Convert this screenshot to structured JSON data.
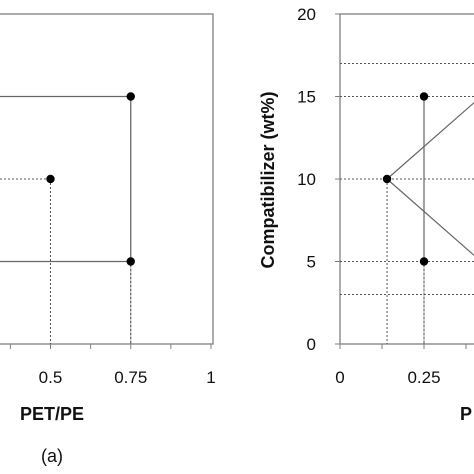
{
  "chart_data": [
    {
      "type": "scatter",
      "panel_label": "(a)",
      "xlabel": "PET/PE",
      "ylabel": "",
      "x_ticks": [
        "0.5",
        "0.75",
        "1"
      ],
      "xlim": [
        0,
        1
      ],
      "ylim": [
        0,
        20
      ],
      "grid": false,
      "points": [
        {
          "x": 0.75,
          "y": 15
        },
        {
          "x": 0.5,
          "y": 10
        },
        {
          "x": 0.75,
          "y": 5
        }
      ],
      "connections": [
        {
          "from": [
            0,
            15
          ],
          "to": [
            0.75,
            15
          ]
        },
        {
          "from": [
            0.75,
            15
          ],
          "to": [
            0.75,
            5
          ]
        },
        {
          "from": [
            0,
            5
          ],
          "to": [
            0.75,
            5
          ]
        }
      ],
      "drop_lines": [
        {
          "x": 0.75,
          "y": 15
        },
        {
          "x": 0.5,
          "y": 10
        },
        {
          "x": 0.75,
          "y": 5
        }
      ]
    },
    {
      "type": "scatter",
      "panel_label": "",
      "xlabel": "P",
      "ylabel": "Compatibilizer (wt%)",
      "x_ticks": [
        "0",
        "0.25"
      ],
      "y_ticks": [
        "0",
        "5",
        "10",
        "15",
        "20"
      ],
      "xlim": [
        0,
        1
      ],
      "ylim": [
        0,
        20
      ],
      "grid": false,
      "points": [
        {
          "x": 0.25,
          "y": 15
        },
        {
          "x": 0.14,
          "y": 10
        },
        {
          "x": 0.25,
          "y": 5
        }
      ],
      "connections": [
        {
          "from": [
            0.25,
            15
          ],
          "to": [
            0.25,
            5
          ]
        },
        {
          "from": [
            0.14,
            10
          ],
          "to": [
            0.42,
            15
          ]
        },
        {
          "from": [
            0.14,
            10
          ],
          "to": [
            0.42,
            5
          ]
        }
      ],
      "h_reference_lines": [
        17,
        15,
        10,
        5,
        3
      ],
      "drop_lines": [
        {
          "x": 0.25,
          "y": 15
        },
        {
          "x": 0.14,
          "y": 10
        },
        {
          "x": 0.25,
          "y": 5
        }
      ]
    }
  ]
}
